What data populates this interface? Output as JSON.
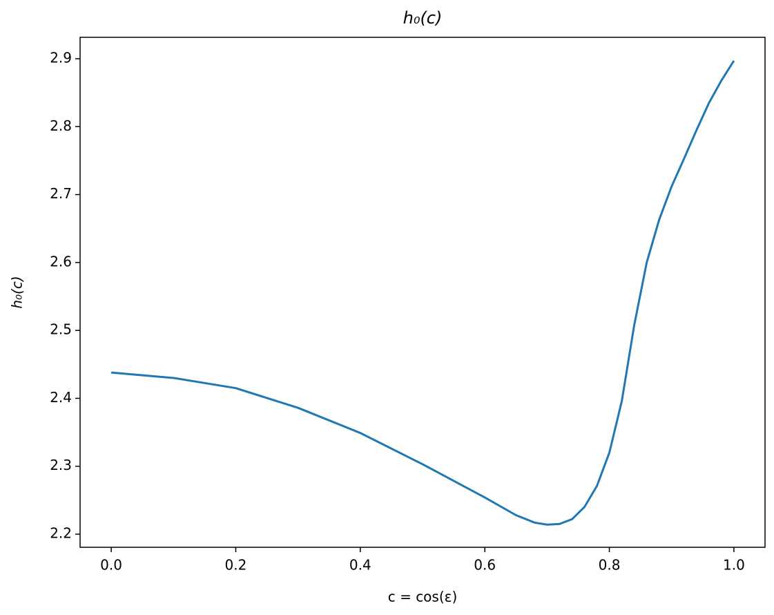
{
  "chart_data": {
    "type": "line",
    "title": "h₀(c)",
    "x_label": "c = cos(ε)",
    "y_label": "h₀(c)",
    "series": [
      {
        "color": "#1f77b4",
        "x": [
          0,
          0.1,
          0.2,
          0.3,
          0.4,
          0.5,
          0.6,
          0.65,
          0.68,
          0.7,
          0.72,
          0.74,
          0.76,
          0.78,
          0.8,
          0.82,
          0.84,
          0.86,
          0.88,
          0.9,
          0.92,
          0.94,
          0.96,
          0.98,
          1.0
        ],
        "values": [
          2.438,
          2.43,
          2.415,
          2.386,
          2.349,
          2.303,
          2.254,
          2.228,
          2.217,
          2.214,
          2.215,
          2.222,
          2.24,
          2.271,
          2.32,
          2.396,
          2.508,
          2.6,
          2.663,
          2.712,
          2.753,
          2.795,
          2.835,
          2.868,
          2.897
        ]
      }
    ],
    "xlim": [
      -0.05,
      1.05
    ],
    "ylim": [
      2.1807,
      2.9315
    ],
    "xticks": [
      {
        "value": 0,
        "label": "0.0"
      },
      0.2,
      0.4,
      0.6,
      0.8,
      {
        "value": 1,
        "label": "1.0"
      }
    ],
    "yticks": [
      2.2,
      2.3,
      2.4,
      2.5,
      2.6,
      2.7,
      2.8,
      2.9
    ],
    "grid": false
  }
}
